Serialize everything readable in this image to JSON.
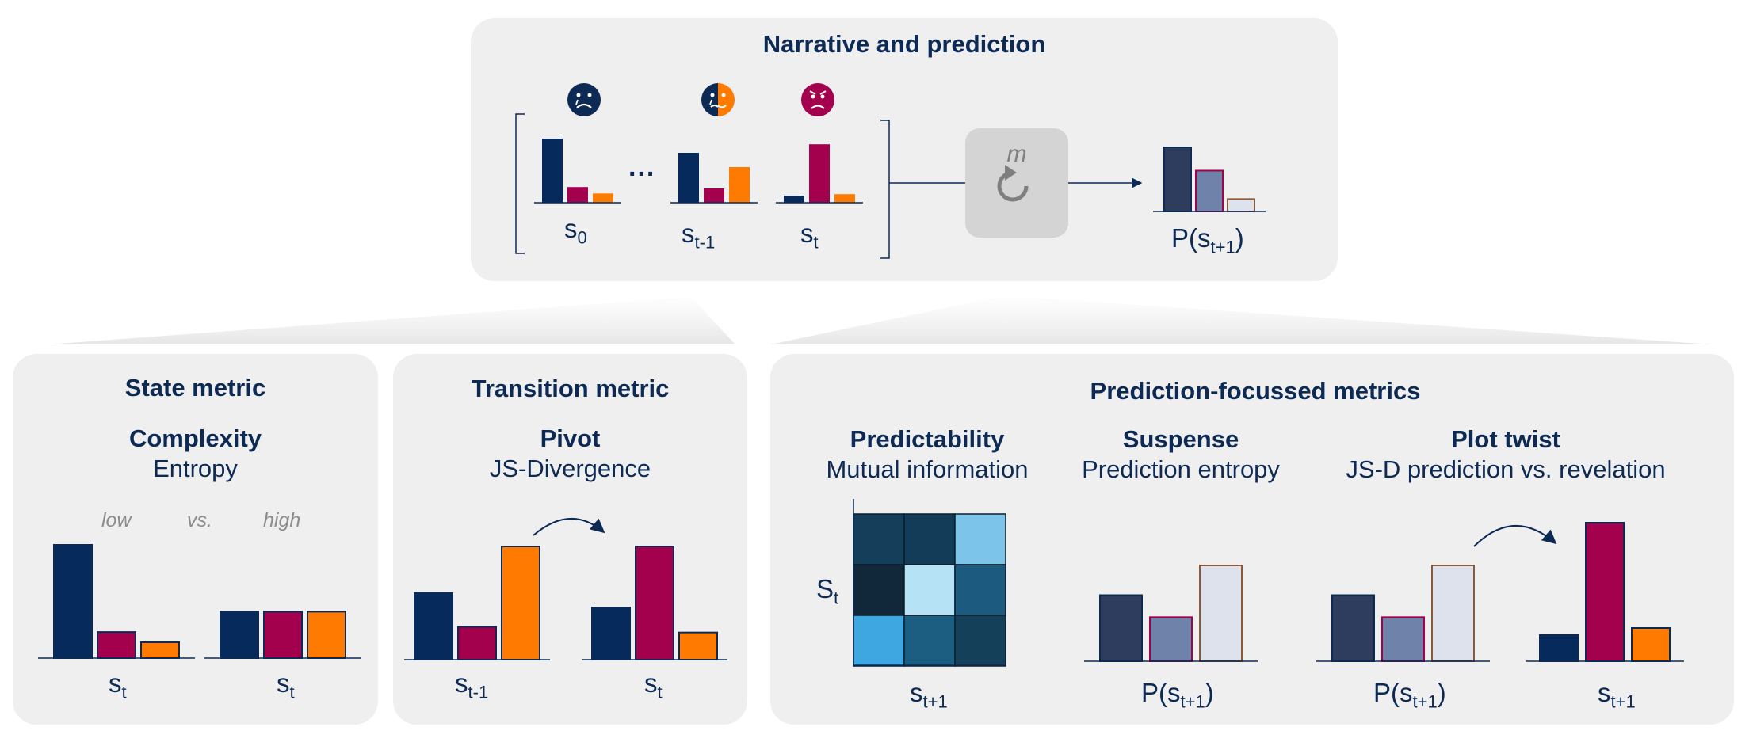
{
  "colors": {
    "navy": "#062a5c",
    "crimson": "#a3004e",
    "orange": "#ff7a00",
    "slate": "#2e3c5d",
    "bluegrey": "#6e82aa",
    "pale": "#dde2ec",
    "panel": "#efefef",
    "box": "#d4d4d4"
  },
  "top": {
    "title": "Narrative and prediction",
    "model_label": "m",
    "dots": "...",
    "icons": [
      "sad-face-icon",
      "mixed-face-icon",
      "angry-face-icon"
    ],
    "states": [
      {
        "name": "s",
        "sub": "0",
        "values": [
          0.9,
          0.22,
          0.13
        ]
      },
      {
        "name": "s",
        "sub": "t-1",
        "values": [
          0.7,
          0.2,
          0.5
        ]
      },
      {
        "name": "s",
        "sub": "t",
        "values": [
          0.1,
          0.82,
          0.12
        ]
      }
    ],
    "prediction": {
      "name": "P(s",
      "sub": "t+1",
      "close": ")",
      "values": [
        0.88,
        0.56,
        0.17
      ]
    }
  },
  "state_metric": {
    "title": "State metric",
    "metric": "Complexity",
    "measure": "Entropy",
    "low": "low",
    "vs": "vs.",
    "high": "high",
    "low_values": [
      1.0,
      0.23,
      0.14
    ],
    "high_values": [
      0.41,
      0.41,
      0.41
    ],
    "label_low": {
      "name": "s",
      "sub": "t"
    },
    "label_high": {
      "name": "s",
      "sub": "t"
    }
  },
  "transition_metric": {
    "title": "Transition metric",
    "metric": "Pivot",
    "measure": "JS-Divergence",
    "prev_values": [
      0.59,
      0.29,
      1.0
    ],
    "curr_values": [
      0.46,
      1.0,
      0.24
    ],
    "label_prev": {
      "name": "s",
      "sub": "t-1"
    },
    "label_curr": {
      "name": "s",
      "sub": "t"
    }
  },
  "prediction_metrics": {
    "title": "Prediction-focussed metrics",
    "predictability": {
      "metric": "Predictability",
      "measure": "Mutual information",
      "y_label": {
        "name": "S",
        "sub": "t"
      },
      "x_label": {
        "name": "s",
        "sub": "t+1"
      },
      "matrix": [
        [
          "#143e5a",
          "#133c58",
          "#7dc4ea"
        ],
        [
          "#10283a",
          "#b6e2f6",
          "#1c5a80"
        ],
        [
          "#3ea6e0",
          "#1c5d82",
          "#14405a"
        ]
      ]
    },
    "suspense": {
      "metric": "Suspense",
      "measure": "Prediction entropy",
      "values": [
        0.69,
        0.46,
        1.0
      ],
      "label": {
        "name": "P(s",
        "sub": "t+1",
        "close": ")"
      }
    },
    "plot_twist": {
      "metric": "Plot twist",
      "measure": "JS-D prediction vs. revelation",
      "pred_values": [
        0.69,
        0.46,
        1.0
      ],
      "rev_values": [
        0.19,
        1.0,
        0.24
      ],
      "label_pred": {
        "name": "P(s",
        "sub": "t+1",
        "close": ")"
      },
      "label_rev": {
        "name": "s",
        "sub": "t+1"
      }
    }
  }
}
